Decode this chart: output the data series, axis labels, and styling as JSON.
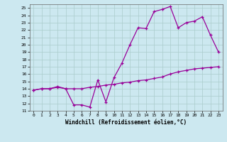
{
  "xlabel": "Windchill (Refroidissement éolien,°C)",
  "background_color": "#cce8f0",
  "grid_color": "#aacccc",
  "line_color": "#990099",
  "xlim": [
    -0.5,
    23.5
  ],
  "ylim": [
    11,
    25.5
  ],
  "yticks": [
    11,
    12,
    13,
    14,
    15,
    16,
    17,
    18,
    19,
    20,
    21,
    22,
    23,
    24,
    25
  ],
  "xticks": [
    0,
    1,
    2,
    3,
    4,
    5,
    6,
    7,
    8,
    9,
    10,
    11,
    12,
    13,
    14,
    15,
    16,
    17,
    18,
    19,
    20,
    21,
    22,
    23
  ],
  "line1_x": [
    0,
    1,
    2,
    3,
    4,
    5,
    6,
    7,
    8,
    9,
    10,
    11,
    12,
    13,
    14,
    15,
    16,
    17,
    18,
    19,
    20,
    21,
    22,
    23
  ],
  "line1_y": [
    13.8,
    14.0,
    14.0,
    14.3,
    14.0,
    11.8,
    11.8,
    11.5,
    15.2,
    12.2,
    15.5,
    17.5,
    20.0,
    22.3,
    22.2,
    24.5,
    24.8,
    25.2,
    22.3,
    23.0,
    23.2,
    23.8,
    21.3,
    19.0
  ],
  "line2_x": [
    0,
    1,
    2,
    3,
    4,
    5,
    6,
    7,
    8,
    9,
    10,
    11,
    12,
    13,
    14,
    15,
    16,
    17,
    18,
    19,
    20,
    21,
    22,
    23
  ],
  "line2_y": [
    13.8,
    14.0,
    14.0,
    14.2,
    14.0,
    14.0,
    14.0,
    14.2,
    14.3,
    14.5,
    14.6,
    14.8,
    14.9,
    15.1,
    15.2,
    15.4,
    15.6,
    16.0,
    16.3,
    16.5,
    16.7,
    16.8,
    16.9,
    17.0
  ]
}
